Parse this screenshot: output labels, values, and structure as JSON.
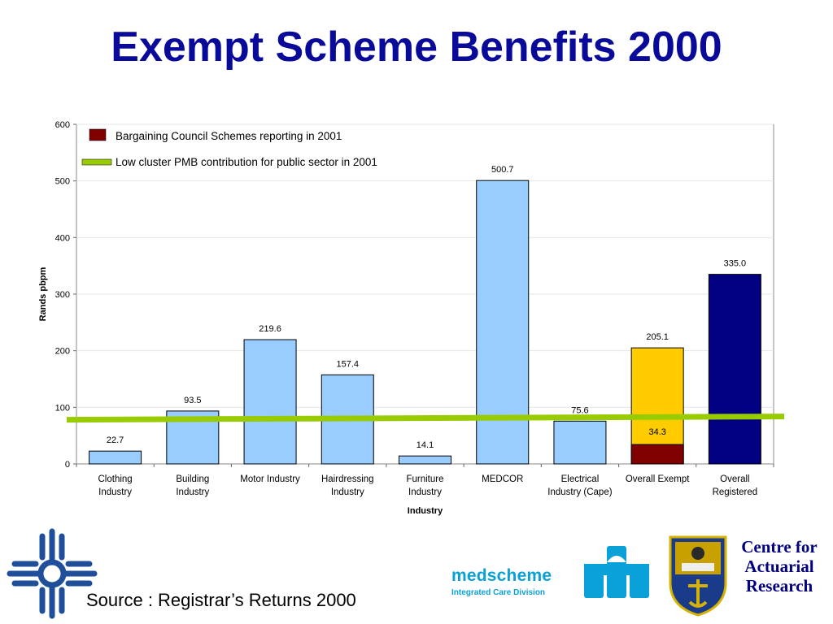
{
  "slide": {
    "title": "Exempt Scheme Benefits 2000",
    "source": "Source : Registrar’s Returns 2000"
  },
  "logos": {
    "medscheme_name": "medscheme",
    "medscheme_tagline": "Integrated Care Division",
    "cfar_lines": [
      "Centre for",
      "Actuarial",
      "Research"
    ]
  },
  "chart_data": {
    "type": "bar",
    "categories": [
      [
        "Clothing",
        "Industry"
      ],
      [
        "Building",
        "Industry"
      ],
      [
        "Motor Industry"
      ],
      [
        "Hairdressing",
        "Industry"
      ],
      [
        "Furniture",
        "Industry"
      ],
      [
        "MEDCOR"
      ],
      [
        "Electrical",
        "Industry (Cape)"
      ],
      [
        "Overall Exempt"
      ],
      [
        "Overall",
        "Registered"
      ]
    ],
    "values": [
      22.7,
      93.5,
      219.6,
      157.4,
      14.1,
      500.7,
      75.6,
      205.1,
      335.0
    ],
    "value_labels": [
      "22.7",
      "93.5",
      "219.6",
      "157.4",
      "14.1",
      "500.7",
      "75.6",
      "205.1",
      "335.0"
    ],
    "bar_colors": [
      "#99ccff",
      "#99ccff",
      "#99ccff",
      "#99ccff",
      "#99ccff",
      "#99ccff",
      "#99ccff",
      "#ffcc00",
      "#000080"
    ],
    "overlay_bar": {
      "category_index": 7,
      "value": 34.3,
      "label": "34.3",
      "color": "#800000"
    },
    "reference_line": {
      "value": 81,
      "color": "#99cc00"
    },
    "ylim": [
      0,
      600
    ],
    "yticks": [
      0,
      100,
      200,
      300,
      400,
      500,
      600
    ],
    "xlabel": "Industry",
    "ylabel": "Rands pbpm",
    "legend": {
      "placement": "top-left",
      "entries": [
        {
          "label": "Bargaining Council Schemes reporting in 2001",
          "color": "#800000",
          "kind": "box"
        },
        {
          "label": "Low cluster PMB contribution for public sector in 2001",
          "color": "#99cc00",
          "kind": "line"
        }
      ]
    },
    "grid": true
  }
}
